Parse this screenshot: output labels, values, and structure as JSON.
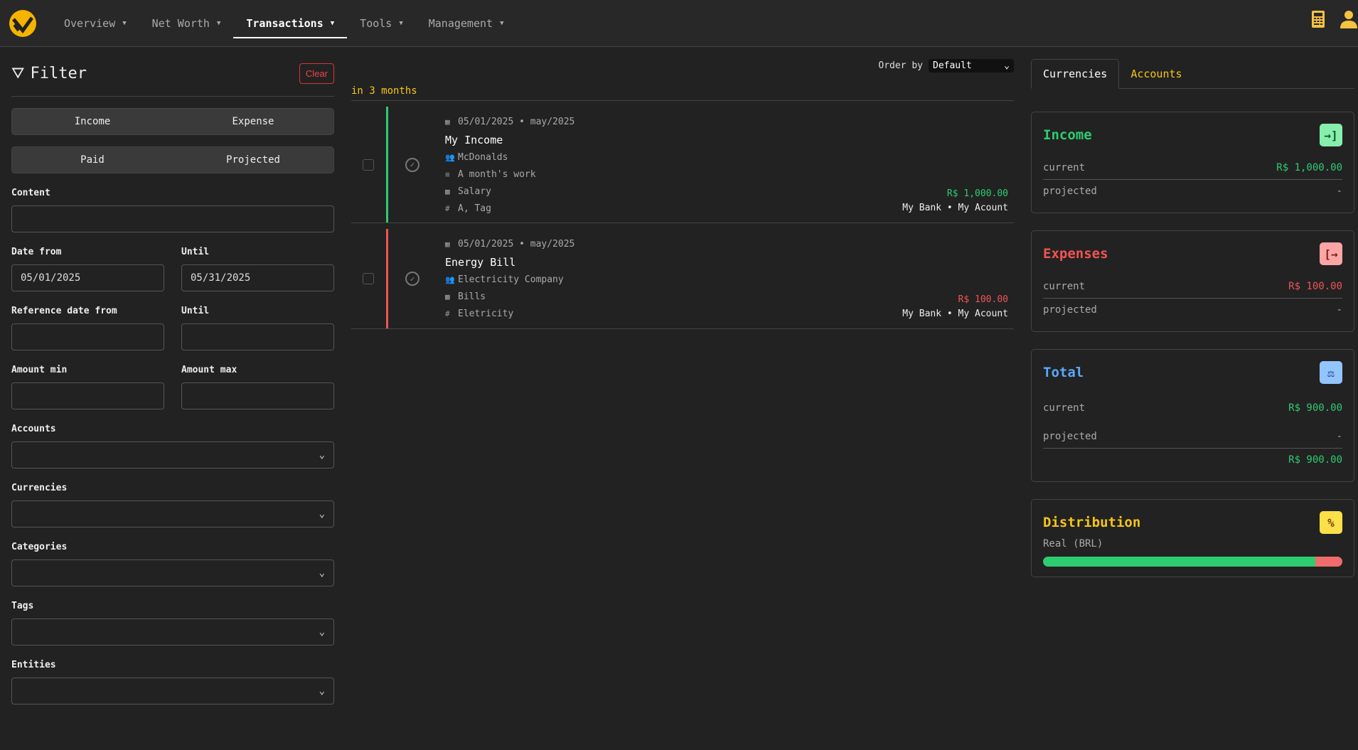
{
  "nav": {
    "items": [
      {
        "label": "Overview"
      },
      {
        "label": "Net Worth"
      },
      {
        "label": "Transactions"
      },
      {
        "label": "Tools"
      },
      {
        "label": "Management"
      }
    ],
    "active": "Transactions"
  },
  "filter": {
    "title": "Filter",
    "clear": "Clear",
    "type_toggle": [
      "Income",
      "Expense"
    ],
    "status_toggle": [
      "Paid",
      "Projected"
    ],
    "content_label": "Content",
    "content_value": "",
    "date_from_label": "Date from",
    "date_from": "05/01/2025",
    "until_label": "Until",
    "date_until": "05/31/2025",
    "ref_from_label": "Reference date from",
    "ref_until_label": "Until",
    "amount_min_label": "Amount min",
    "amount_max_label": "Amount max",
    "accounts_label": "Accounts",
    "currencies_label": "Currencies",
    "categories_label": "Categories",
    "tags_label": "Tags",
    "entities_label": "Entities"
  },
  "list": {
    "order_label": "Order by",
    "order_value": "Default",
    "group": "in 3 months",
    "transactions": [
      {
        "date": "05/01/2025 • may/2025",
        "title": "My Income",
        "entity": "McDonalds",
        "description": "A month's work",
        "category": "Salary",
        "tags": "A, Tag",
        "amount": "R$ 1,000.00",
        "account": "My Bank • My Acount",
        "type": "income"
      },
      {
        "date": "05/01/2025 • may/2025",
        "title": "Energy Bill",
        "entity": "Electricity Company",
        "category": "Bills",
        "tags": "Eletricity",
        "amount": "R$ 100.00",
        "account": "My Bank • My Acount",
        "type": "expense"
      }
    ]
  },
  "summary": {
    "tabs": [
      "Currencies",
      "Accounts"
    ],
    "active_tab": "Currencies",
    "income": {
      "title": "Income",
      "current_label": "current",
      "current": "R$ 1,000.00",
      "projected_label": "projected",
      "projected": "-"
    },
    "expenses": {
      "title": "Expenses",
      "current_label": "current",
      "current": "R$ 100.00",
      "projected_label": "projected",
      "projected": "-"
    },
    "total": {
      "title": "Total",
      "current_label": "current",
      "current": "R$ 900.00",
      "projected_label": "projected",
      "projected": "-",
      "sum": "R$ 900.00"
    },
    "distribution": {
      "title": "Distribution",
      "currency": "Real (BRL)",
      "income_fraction": 0.909,
      "expense_fraction": 0.091
    }
  },
  "colors": {
    "accent": "#f5c518",
    "income": "#2ecc71",
    "expense": "#f05454",
    "total": "#5aa9ff"
  }
}
